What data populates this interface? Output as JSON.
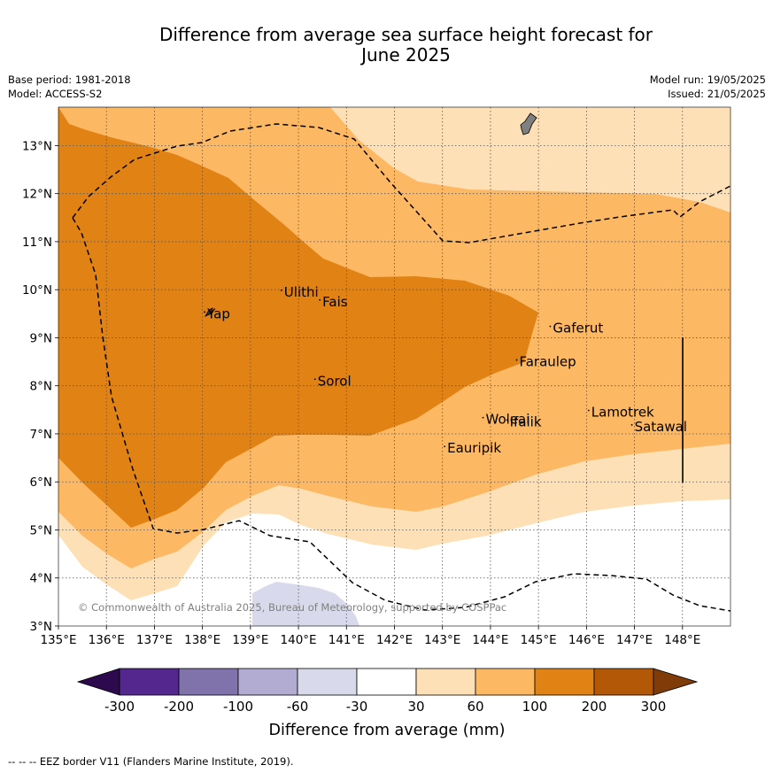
{
  "header": {
    "title_line1": "Difference from average sea surface height forecast for",
    "title_line2": "June 2025",
    "base_period": "Base period: 1981-2018",
    "model": "Model: ACCESS-S2",
    "model_run": "Model run: 19/05/2025",
    "issued": "Issued: 21/05/2025"
  },
  "footer": {
    "eez_note": "-- -- -- EEZ border V11 (Flanders Marine Institute, 2019)."
  },
  "chart_data": {
    "type": "heatmap",
    "title": "Difference from average sea surface height forecast for June 2025",
    "x_axis": {
      "range": [
        135,
        149
      ],
      "ticks": [
        "135°E",
        "136°E",
        "137°E",
        "138°E",
        "139°E",
        "140°E",
        "141°E",
        "142°E",
        "143°E",
        "144°E",
        "145°E",
        "146°E",
        "147°E",
        "148°E"
      ]
    },
    "y_axis": {
      "range": [
        3,
        13.8
      ],
      "ticks": [
        "3°N",
        "4°N",
        "5°N",
        "6°N",
        "7°N",
        "8°N",
        "9°N",
        "10°N",
        "11°N",
        "12°N",
        "13°N"
      ]
    },
    "grid": true,
    "colorbar": {
      "label": "Difference from average (mm)",
      "boundaries": [
        "-300",
        "-200",
        "-100",
        "-60",
        "-30",
        "30",
        "60",
        "100",
        "200",
        "300"
      ],
      "colors": [
        "#2d0a4e",
        "#54278f",
        "#8073ac",
        "#b2abd2",
        "#d8daeb",
        "#ffffff",
        "#fee0b6",
        "#fdb863",
        "#e08214",
        "#b35806",
        "#7f3b08"
      ],
      "extend": "both"
    },
    "contour_bands": [
      {
        "range_mm": "30 to 60",
        "color": "#fee0b6"
      },
      {
        "range_mm": "60 to 100",
        "color": "#fdb863"
      },
      {
        "range_mm": "100 to 200",
        "color": "#e08214"
      },
      {
        "range_mm": "-60 to -30",
        "color": "#d8daeb"
      }
    ],
    "places": [
      {
        "name": "Yap",
        "lon": 138.1,
        "lat": 9.5
      },
      {
        "name": "Ulithi",
        "lon": 139.7,
        "lat": 9.95
      },
      {
        "name": "Fais",
        "lon": 140.5,
        "lat": 9.75
      },
      {
        "name": "Sorol",
        "lon": 140.4,
        "lat": 8.1
      },
      {
        "name": "Gaferut",
        "lon": 145.3,
        "lat": 9.2
      },
      {
        "name": "Faraulep",
        "lon": 144.6,
        "lat": 8.5
      },
      {
        "name": "Woleai",
        "lon": 143.9,
        "lat": 7.3
      },
      {
        "name": "Ifalik",
        "lon": 144.4,
        "lat": 7.25
      },
      {
        "name": "Lamotrek",
        "lon": 146.1,
        "lat": 7.45
      },
      {
        "name": "Satawal",
        "lon": 147.0,
        "lat": 7.15
      },
      {
        "name": "Eauripik",
        "lon": 143.1,
        "lat": 6.7
      }
    ],
    "eez_border_style": "dashed",
    "copyright": "© Commonwealth of Australia 2025, Bureau of Meteorology, supported by COSPPac"
  },
  "colors": {
    "land": "#808080",
    "grid": "#555555",
    "eez": "#000000"
  }
}
